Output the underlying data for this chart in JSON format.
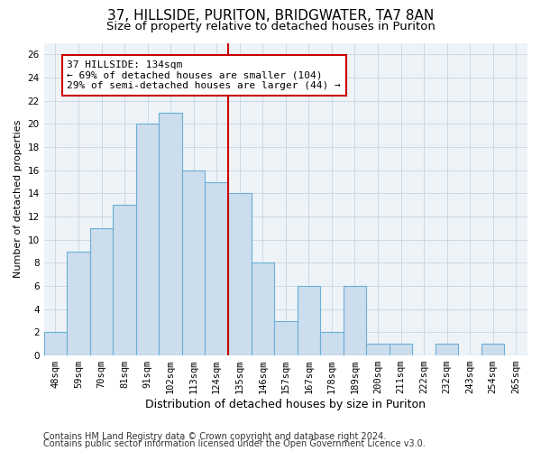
{
  "title1": "37, HILLSIDE, PURITON, BRIDGWATER, TA7 8AN",
  "title2": "Size of property relative to detached houses in Puriton",
  "xlabel": "Distribution of detached houses by size in Puriton",
  "ylabel": "Number of detached properties",
  "categories": [
    "48sqm",
    "59sqm",
    "70sqm",
    "81sqm",
    "91sqm",
    "102sqm",
    "113sqm",
    "124sqm",
    "135sqm",
    "146sqm",
    "157sqm",
    "167sqm",
    "178sqm",
    "189sqm",
    "200sqm",
    "211sqm",
    "222sqm",
    "232sqm",
    "243sqm",
    "254sqm",
    "265sqm"
  ],
  "values": [
    2,
    9,
    11,
    13,
    20,
    21,
    16,
    15,
    14,
    8,
    3,
    6,
    2,
    6,
    1,
    1,
    0,
    1,
    0,
    1,
    0
  ],
  "bar_color": "#ccdded",
  "bar_edge_color": "#6aaed6",
  "vline_x_index": 8,
  "vline_color": "#cc0000",
  "annotation_text": "37 HILLSIDE: 134sqm\n← 69% of detached houses are smaller (104)\n29% of semi-detached houses are larger (44) →",
  "annotation_box_color": "#ffffff",
  "annotation_box_edge": "#cc0000",
  "ylim": [
    0,
    27
  ],
  "yticks": [
    0,
    2,
    4,
    6,
    8,
    10,
    12,
    14,
    16,
    18,
    20,
    22,
    24,
    26
  ],
  "grid_color": "#c8d4de",
  "background_color": "#eef3f8",
  "footer1": "Contains HM Land Registry data © Crown copyright and database right 2024.",
  "footer2": "Contains public sector information licensed under the Open Government Licence v3.0.",
  "title1_fontsize": 11,
  "title2_fontsize": 9.5,
  "xlabel_fontsize": 9,
  "ylabel_fontsize": 8,
  "tick_fontsize": 7.5,
  "annotation_fontsize": 8,
  "footer_fontsize": 7
}
